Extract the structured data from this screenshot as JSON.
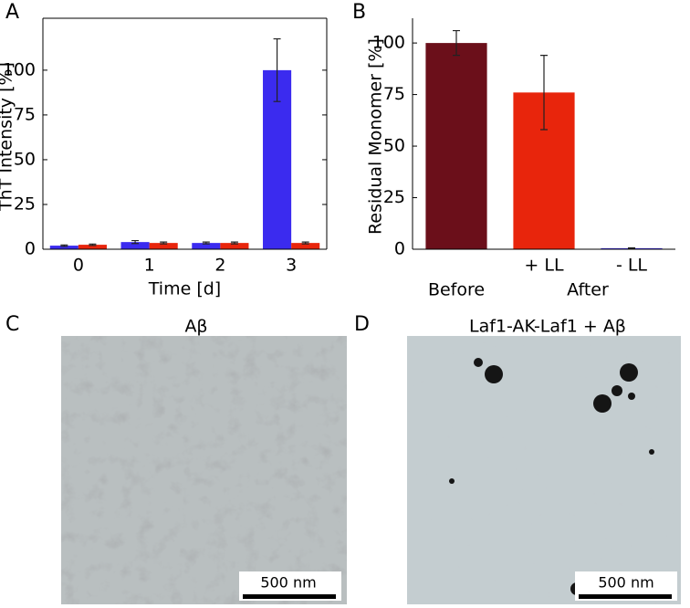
{
  "chart_data": [
    {
      "type": "bar",
      "label": "A",
      "ylabel": "ThT Intensity [%]",
      "xlabel": "Time [d]",
      "categories": [
        "0",
        "1",
        "2",
        "3"
      ],
      "series": [
        {
          "color": "#3b2bef",
          "values": [
            2,
            4,
            3.5,
            100
          ],
          "errors": [
            0.4,
            0.8,
            0.5,
            17.5
          ]
        },
        {
          "color": "#e8250c",
          "values": [
            2.5,
            3.5,
            3.5,
            3.5
          ],
          "errors": [
            0.4,
            0.5,
            0.5,
            0.5
          ]
        }
      ],
      "ylim": [
        0,
        129
      ],
      "yticks": [
        0,
        25,
        50,
        75,
        100
      ],
      "box": true
    },
    {
      "type": "bar",
      "label": "B",
      "ylabel": "Residual Monomer [%]",
      "categories": [
        "Before",
        "+ LL",
        "- LL"
      ],
      "category_colors": [
        "#000000",
        "#e8250c",
        "#3b2bef"
      ],
      "group_label": "After",
      "series": [
        {
          "colors": [
            "#6b0f1a",
            "#e8250c",
            "#3b2bef"
          ],
          "values": [
            100,
            76,
            0.5
          ],
          "errors": [
            6,
            18,
            0.2
          ]
        }
      ],
      "ylim": [
        0,
        112
      ],
      "yticks": [
        0,
        25,
        50,
        75,
        100
      ],
      "box": false
    }
  ],
  "images": [
    {
      "label": "C",
      "title": "Aβ",
      "scale": "500 nm"
    },
    {
      "label": "D",
      "title": "Laf1-AK-Laf1 + Aβ",
      "scale": "500 nm"
    }
  ]
}
